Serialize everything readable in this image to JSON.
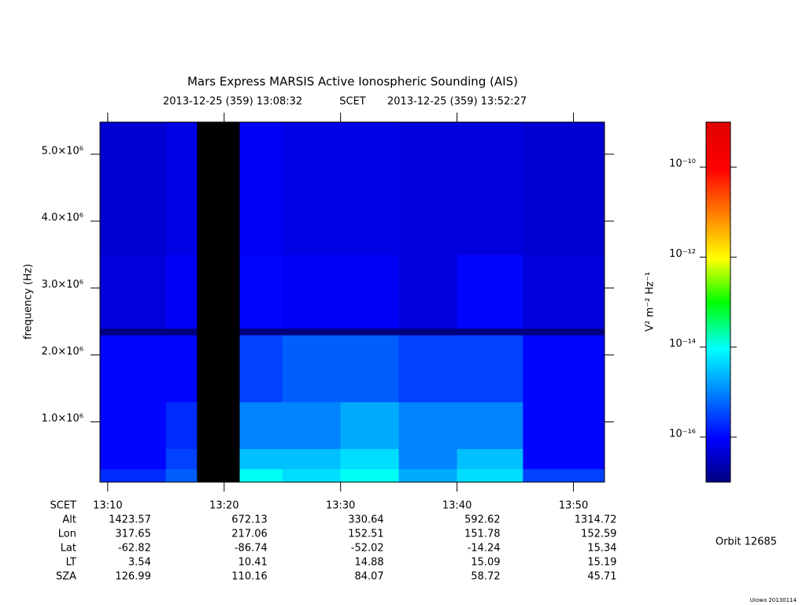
{
  "chart_data": {
    "type": "spectrogram",
    "title": "Mars Express MARSIS Active Ionospheric Sounding (AIS)",
    "subtitle_start": "2013-12-25 (359) 13:08:32",
    "subtitle_mid": "SCET",
    "subtitle_end": "2013-12-25 (359) 13:52:27",
    "y_label": "frequency (Hz)",
    "colorbar_label": "V² m⁻² Hz⁻¹",
    "xlim": [
      "13:09:20",
      "13:52:40"
    ],
    "xticks": [
      "13:10",
      "13:20",
      "13:30",
      "13:40",
      "13:50"
    ],
    "ylim": [
      100000,
      5480000
    ],
    "yticks": [
      {
        "value": 1000000,
        "label": "1.0×10⁶"
      },
      {
        "value": 2000000,
        "label": "2.0×10⁶"
      },
      {
        "value": 3000000,
        "label": "3.0×10⁶"
      },
      {
        "value": 4000000,
        "label": "4.0×10⁶"
      },
      {
        "value": 5000000,
        "label": "5.0×10⁶"
      }
    ],
    "zlim": [
      1e-17,
      1e-09
    ],
    "zscale": "log",
    "zticks": [
      {
        "value": 1e-10,
        "label": "10⁻¹⁰"
      },
      {
        "value": 1e-12,
        "label": "10⁻¹²"
      },
      {
        "value": 1e-14,
        "label": "10⁻¹⁴"
      },
      {
        "value": 1e-16,
        "label": "10⁻¹⁶"
      }
    ],
    "time_edges": [
      "13:09:20",
      "13:12:00",
      "13:15:00",
      "13:17:40",
      "13:21:20",
      "13:25:00",
      "13:30:00",
      "13:35:00",
      "13:40:00",
      "13:45:40",
      "13:52:40"
    ],
    "frequency_edges": [
      100000,
      300000,
      600000,
      1300000,
      2300000,
      2400000,
      3500000,
      5480000
    ],
    "values": [
      [
        2e-16,
        2e-16,
        5e-16,
        null,
        1e-14,
        5e-15,
        1e-14,
        2e-15,
        5e-15,
        3e-16
      ],
      [
        1e-16,
        1e-16,
        3e-16,
        null,
        3e-15,
        3e-15,
        5e-15,
        1e-15,
        3e-15,
        1e-16
      ],
      [
        1e-16,
        1e-16,
        2e-16,
        null,
        1e-15,
        1e-15,
        2e-15,
        1e-15,
        1e-15,
        1e-16
      ],
      [
        1e-16,
        1e-16,
        1e-16,
        null,
        3e-16,
        5e-16,
        5e-16,
        3e-16,
        3e-16,
        1e-16
      ],
      [
        1e-17,
        1e-17,
        1e-17,
        null,
        1e-17,
        1e-17,
        1e-17,
        1e-17,
        1e-17,
        1e-17
      ],
      [
        5e-17,
        5e-17,
        8e-17,
        null,
        1e-16,
        8e-17,
        8e-17,
        5e-17,
        1e-16,
        5e-17
      ],
      [
        4e-17,
        4e-17,
        6e-17,
        null,
        8e-17,
        6e-17,
        6e-17,
        5e-17,
        5e-17,
        4e-17
      ]
    ],
    "ephemeris_time_label": "SCET",
    "ephemeris": [
      {
        "label": "Alt",
        "values": [
          1423.57,
          672.13,
          330.64,
          592.62,
          1314.72
        ]
      },
      {
        "label": "Lon",
        "values": [
          317.65,
          217.06,
          152.51,
          151.78,
          152.59
        ]
      },
      {
        "label": "Lat",
        "values": [
          -62.82,
          -86.74,
          -52.02,
          -14.24,
          15.34
        ]
      },
      {
        "label": "LT",
        "values": [
          3.54,
          10.41,
          14.88,
          15.09,
          15.19
        ]
      },
      {
        "label": "SZA",
        "values": [
          126.99,
          110.16,
          84.07,
          58.72,
          45.71
        ]
      }
    ],
    "orbit": "Orbit 12685",
    "footer_note": "Uiowa 20130114"
  }
}
